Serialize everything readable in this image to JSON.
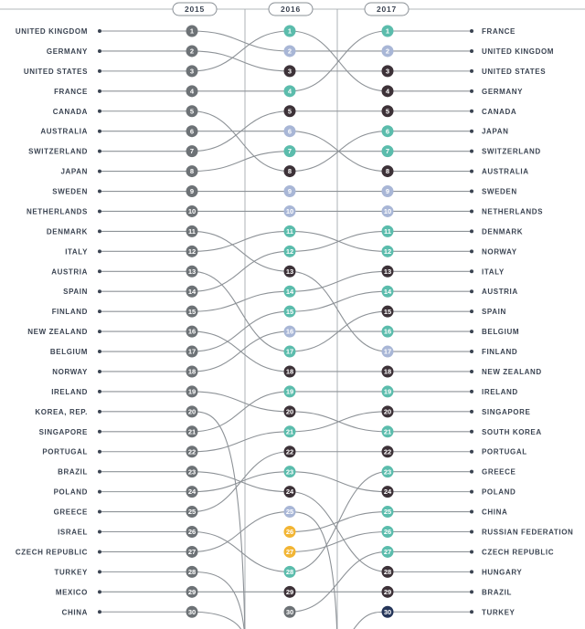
{
  "colors": {
    "light_grey": "#b9bcbe",
    "grey": "#6d7276",
    "dark": "#3d3238",
    "teal": "#5bbcac",
    "lightblue": "#a8b6d6",
    "orange": "#f2b534",
    "navy": "#253559",
    "ink": "#3b4452"
  },
  "chart_data": {
    "type": "bump",
    "years": [
      "2015",
      "2016",
      "2017"
    ],
    "ranks": [
      1,
      2,
      3,
      4,
      5,
      6,
      7,
      8,
      9,
      10,
      11,
      12,
      13,
      14,
      15,
      16,
      17,
      18,
      19,
      20,
      21,
      22,
      23,
      24,
      25,
      26,
      27,
      28,
      29,
      30
    ],
    "left_labels": [
      "UNITED KINGDOM",
      "GERMANY",
      "UNITED STATES",
      "FRANCE",
      "CANADA",
      "AUSTRALIA",
      "SWITZERLAND",
      "JAPAN",
      "SWEDEN",
      "NETHERLANDS",
      "DENMARK",
      "ITALY",
      "AUSTRIA",
      "SPAIN",
      "FINLAND",
      "NEW ZEALAND",
      "BELGIUM",
      "NORWAY",
      "IRELAND",
      "KOREA, REP.",
      "SINGAPORE",
      "PORTUGAL",
      "BRAZIL",
      "POLAND",
      "GREECE",
      "ISRAEL",
      "CZECH REPUBLIC",
      "TURKEY",
      "MEXICO",
      "CHINA"
    ],
    "right_labels": [
      "FRANCE",
      "UNITED KINGDOM",
      "UNITED STATES",
      "GERMANY",
      "CANADA",
      "JAPAN",
      "SWITZERLAND",
      "AUSTRALIA",
      "SWEDEN",
      "NETHERLANDS",
      "DENMARK",
      "NORWAY",
      "ITALY",
      "AUSTRIA",
      "SPAIN",
      "BELGIUM",
      "FINLAND",
      "NEW ZEALAND",
      "IRELAND",
      "SINGAPORE",
      "SOUTH KOREA",
      "PORTUGAL",
      "GREECE",
      "POLAND",
      "CHINA",
      "RUSSIAN FEDERATION",
      "CZECH REPUBLIC",
      "HUNGARY",
      "BRAZIL",
      "TURKEY"
    ],
    "circle_colors_2015": [
      "grey",
      "grey",
      "grey",
      "grey",
      "grey",
      "grey",
      "grey",
      "grey",
      "grey",
      "grey",
      "grey",
      "grey",
      "grey",
      "grey",
      "grey",
      "grey",
      "grey",
      "grey",
      "grey",
      "grey",
      "grey",
      "grey",
      "grey",
      "grey",
      "grey",
      "grey",
      "grey",
      "grey",
      "grey",
      "grey"
    ],
    "circle_colors_2016": [
      "teal",
      "lightblue",
      "dark",
      "teal",
      "dark",
      "lightblue",
      "teal",
      "dark",
      "lightblue",
      "lightblue",
      "teal",
      "teal",
      "dark",
      "teal",
      "teal",
      "lightblue",
      "teal",
      "dark",
      "teal",
      "dark",
      "teal",
      "dark",
      "teal",
      "dark",
      "lightblue",
      "orange",
      "orange",
      "teal",
      "dark",
      "grey"
    ],
    "circle_colors_2017": [
      "teal",
      "lightblue",
      "dark",
      "dark",
      "dark",
      "teal",
      "teal",
      "dark",
      "lightblue",
      "lightblue",
      "teal",
      "teal",
      "dark",
      "teal",
      "dark",
      "teal",
      "lightblue",
      "dark",
      "teal",
      "dark",
      "teal",
      "dark",
      "teal",
      "dark",
      "teal",
      "teal",
      "teal",
      "dark",
      "dark",
      "navy"
    ],
    "links_2015_2016": [
      [
        1,
        2
      ],
      [
        2,
        3
      ],
      [
        3,
        1
      ],
      [
        4,
        4
      ],
      [
        5,
        8
      ],
      [
        6,
        6
      ],
      [
        7,
        5
      ],
      [
        8,
        7
      ],
      [
        9,
        9
      ],
      [
        10,
        10
      ],
      [
        11,
        13
      ],
      [
        12,
        11
      ],
      [
        13,
        17
      ],
      [
        14,
        12
      ],
      [
        15,
        14
      ],
      [
        16,
        18
      ],
      [
        17,
        15
      ],
      [
        18,
        16
      ],
      [
        19,
        20
      ],
      [
        20,
        null
      ],
      [
        21,
        19
      ],
      [
        22,
        21
      ],
      [
        23,
        24
      ],
      [
        24,
        23
      ],
      [
        25,
        22
      ],
      [
        26,
        28
      ],
      [
        27,
        25
      ],
      [
        28,
        null
      ],
      [
        29,
        29
      ],
      [
        30,
        null
      ]
    ],
    "links_2016_2017": [
      [
        1,
        4
      ],
      [
        2,
        2
      ],
      [
        3,
        3
      ],
      [
        4,
        1
      ],
      [
        5,
        5
      ],
      [
        6,
        8
      ],
      [
        7,
        7
      ],
      [
        8,
        6
      ],
      [
        9,
        9
      ],
      [
        10,
        10
      ],
      [
        11,
        12
      ],
      [
        12,
        11
      ],
      [
        13,
        17
      ],
      [
        14,
        13
      ],
      [
        15,
        14
      ],
      [
        16,
        16
      ],
      [
        17,
        15
      ],
      [
        18,
        18
      ],
      [
        19,
        19
      ],
      [
        20,
        21
      ],
      [
        21,
        20
      ],
      [
        22,
        22
      ],
      [
        23,
        24
      ],
      [
        24,
        28
      ],
      [
        25,
        null
      ],
      [
        26,
        25
      ],
      [
        27,
        26
      ],
      [
        28,
        23
      ],
      [
        29,
        29
      ],
      [
        30,
        27
      ]
    ],
    "links_2017_external": [
      30
    ]
  }
}
